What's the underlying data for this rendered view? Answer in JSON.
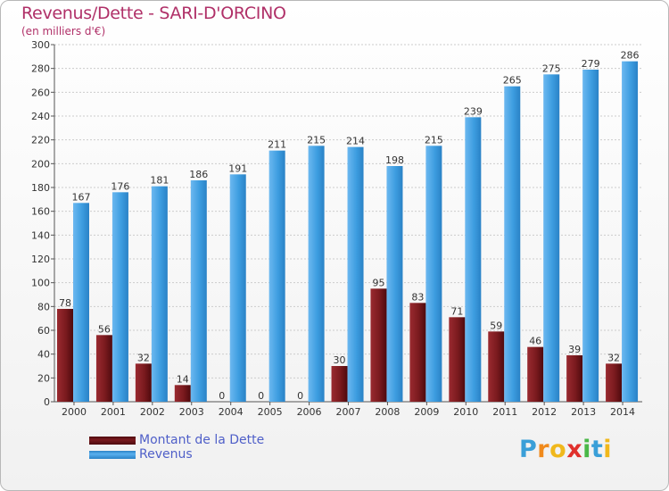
{
  "title": "Revenus/Dette - SARI-D'ORCINO",
  "subtitle": "(en milliers d'€)",
  "logo": {
    "letters": [
      "P",
      "r",
      "o",
      "x",
      "i",
      "t",
      "i"
    ],
    "colors": [
      "#3a9fd8",
      "#f08a1c",
      "#f0b81c",
      "#e0302c",
      "#4ab848",
      "#3a9fd8",
      "#f0b81c"
    ]
  },
  "chart_data": {
    "type": "bar",
    "categories": [
      "2000",
      "2001",
      "2002",
      "2003",
      "2004",
      "2005",
      "2006",
      "2007",
      "2008",
      "2009",
      "2010",
      "2011",
      "2012",
      "2013",
      "2014"
    ],
    "series": [
      {
        "name": "Montant de la Dette",
        "color": "#7a1a1e",
        "values": [
          78,
          56,
          32,
          14,
          0,
          0,
          0,
          30,
          95,
          83,
          71,
          59,
          46,
          39,
          32
        ]
      },
      {
        "name": "Revenus",
        "color": "#3d9de0",
        "values": [
          167,
          176,
          181,
          186,
          191,
          211,
          215,
          214,
          198,
          215,
          239,
          265,
          275,
          279,
          286
        ]
      }
    ],
    "ylim": [
      0,
      300
    ],
    "yticks": [
      0,
      20,
      40,
      60,
      80,
      100,
      120,
      140,
      160,
      180,
      200,
      220,
      240,
      260,
      280,
      300
    ],
    "grid": true,
    "legend_position": "bottom-left"
  }
}
